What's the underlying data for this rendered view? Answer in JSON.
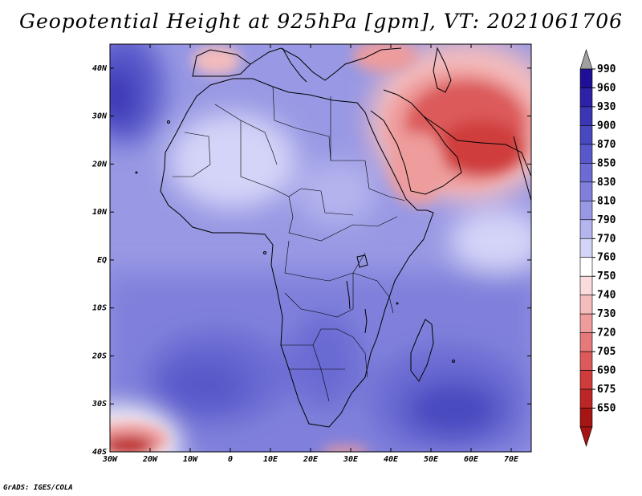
{
  "title": "Geopotential Height at 925hPa [gpm], VT: 2021061706",
  "credit": "GrADS: IGES/COLA",
  "map": {
    "lon_range": [
      -30,
      75
    ],
    "lat_range": [
      -40,
      45
    ],
    "lon_ticks": [
      {
        "value": -30,
        "label": "30W"
      },
      {
        "value": -20,
        "label": "20W"
      },
      {
        "value": -10,
        "label": "10W"
      },
      {
        "value": 0,
        "label": "0"
      },
      {
        "value": 10,
        "label": "10E"
      },
      {
        "value": 20,
        "label": "20E"
      },
      {
        "value": 30,
        "label": "30E"
      },
      {
        "value": 40,
        "label": "40E"
      },
      {
        "value": 50,
        "label": "50E"
      },
      {
        "value": 60,
        "label": "60E"
      },
      {
        "value": 70,
        "label": "70E"
      }
    ],
    "lat_ticks": [
      {
        "value": 40,
        "label": "40N"
      },
      {
        "value": 30,
        "label": "30N"
      },
      {
        "value": 20,
        "label": "20N"
      },
      {
        "value": 10,
        "label": "10N"
      },
      {
        "value": 0,
        "label": "EQ"
      },
      {
        "value": -10,
        "label": "10S"
      },
      {
        "value": -20,
        "label": "20S"
      },
      {
        "value": -30,
        "label": "30S"
      },
      {
        "value": -40,
        "label": "40S"
      }
    ]
  },
  "colorbar": {
    "top_arrow_color": "#a0a0a0",
    "bottom_arrow_color": "#a61414",
    "levels": [
      {
        "label": "990",
        "color": "#1e0f96"
      },
      {
        "label": "960",
        "color": "#2c21a7"
      },
      {
        "label": "930",
        "color": "#3a36b4"
      },
      {
        "label": "900",
        "color": "#4848c0"
      },
      {
        "label": "870",
        "color": "#5858ca"
      },
      {
        "label": "850",
        "color": "#6b6bd3"
      },
      {
        "label": "830",
        "color": "#8080dc"
      },
      {
        "label": "810",
        "color": "#9898e4"
      },
      {
        "label": "790",
        "color": "#b4b4ee"
      },
      {
        "label": "770",
        "color": "#d4d4f8"
      },
      {
        "label": "760",
        "color": "#ffffff"
      },
      {
        "label": "750",
        "color": "#fadcdc"
      },
      {
        "label": "740",
        "color": "#f4bcbc"
      },
      {
        "label": "730",
        "color": "#ee9c9c"
      },
      {
        "label": "720",
        "color": "#e67a7a"
      },
      {
        "label": "705",
        "color": "#dc5a5a"
      },
      {
        "label": "690",
        "color": "#d03c3c"
      },
      {
        "label": "675",
        "color": "#bc2626"
      },
      {
        "label": "650",
        "color": "#a61414"
      }
    ]
  }
}
